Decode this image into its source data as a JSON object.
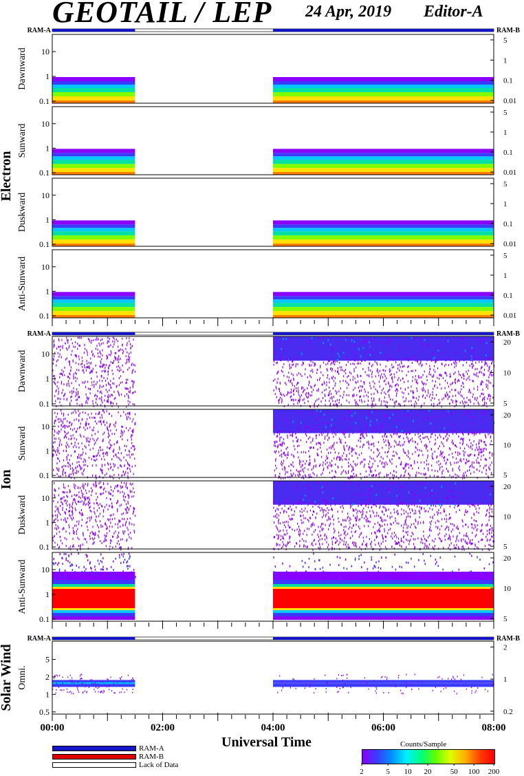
{
  "header": {
    "title": "GEOTAIL / LEP",
    "date": "24 Apr, 2019",
    "editor": "Editor-A"
  },
  "ram_labels": {
    "left": "RAM-A",
    "right": "RAM-B"
  },
  "groups": [
    {
      "label": "Electron"
    },
    {
      "label": "Ion"
    },
    {
      "label": "Solar Wind"
    }
  ],
  "x_axis": {
    "title": "Universal Time",
    "ticks": [
      "00:00",
      "02:00",
      "04:00",
      "06:00",
      "08:00"
    ]
  },
  "legend": {
    "items": [
      {
        "label": "RAM-A",
        "color": "#1414c8"
      },
      {
        "label": "RAM-B",
        "color": "#e00000"
      },
      {
        "label": "Lack of Data",
        "color": "#ffffff"
      }
    ]
  },
  "colorbar": {
    "title": "Counts/Sample",
    "ticks": [
      "2",
      "5",
      "10",
      "20",
      "50",
      "100",
      "200"
    ]
  },
  "chart_data": {
    "type": "heatmap",
    "x_range_hours": [
      0,
      8
    ],
    "data_coverage": [
      [
        0.0,
        1.5
      ],
      [
        4.0,
        8.0
      ]
    ],
    "panels": [
      {
        "group": "Electron",
        "name": "Dawnward",
        "left_ticks": [
          "10",
          "1",
          "0.1"
        ],
        "right_ticks": [
          "5",
          "1",
          "0.1",
          "0.01"
        ]
      },
      {
        "group": "Electron",
        "name": "Sunward",
        "left_ticks": [
          "10",
          "1",
          "0.1"
        ],
        "right_ticks": [
          "5",
          "1",
          "0.1",
          "0.01"
        ]
      },
      {
        "group": "Electron",
        "name": "Duskward",
        "left_ticks": [
          "10",
          "1",
          "0.1"
        ],
        "right_ticks": [
          "5",
          "1",
          "0.1",
          "0.01"
        ]
      },
      {
        "group": "Electron",
        "name": "Anti-Sunward",
        "left_ticks": [
          "10",
          "1",
          "0.1"
        ],
        "right_ticks": [
          "5",
          "1",
          "0.1",
          "0.01"
        ]
      },
      {
        "group": "Ion",
        "name": "Dawnward",
        "left_ticks": [
          "10",
          "1",
          "0.1"
        ],
        "right_ticks": [
          "20",
          "10",
          "5"
        ]
      },
      {
        "group": "Ion",
        "name": "Sunward",
        "left_ticks": [
          "10",
          "1",
          "0.1"
        ],
        "right_ticks": [
          "20",
          "10",
          "5"
        ]
      },
      {
        "group": "Ion",
        "name": "Duskward",
        "left_ticks": [
          "10",
          "1",
          "0.1"
        ],
        "right_ticks": [
          "20",
          "10",
          "5"
        ]
      },
      {
        "group": "Ion",
        "name": "Anti-Sunward",
        "left_ticks": [
          "10",
          "1",
          "0.1"
        ],
        "right_ticks": [
          "20",
          "10",
          "5"
        ]
      },
      {
        "group": "Solar Wind",
        "name": "Omni.",
        "left_ticks": [
          "5",
          "2",
          "1",
          "0.5"
        ],
        "right_ticks": [
          "2",
          "1",
          "0.2"
        ]
      }
    ],
    "ram_coverage": [
      {
        "color": "ram_a",
        "range": [
          0.0,
          1.5
        ]
      },
      {
        "color": "none",
        "range": [
          1.5,
          4.0
        ]
      },
      {
        "color": "ram_a",
        "range": [
          4.0,
          8.0
        ]
      }
    ]
  }
}
